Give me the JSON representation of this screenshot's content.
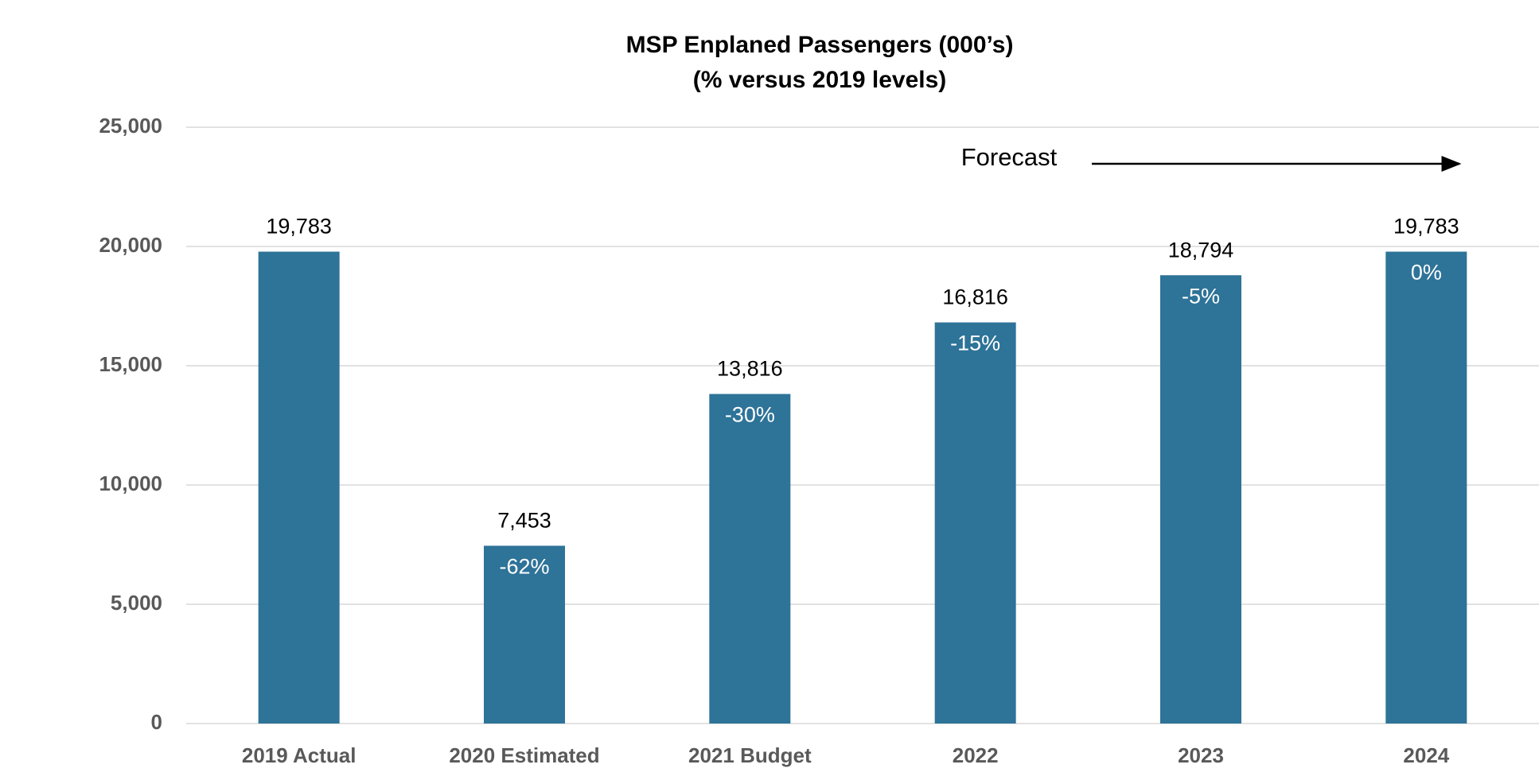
{
  "chart_data": {
    "type": "bar",
    "title": "MSP Enplaned Passengers (000’s)",
    "subtitle": "(% versus 2019 levels)",
    "categories": [
      "2019 Actual",
      "2020 Estimated",
      "2021 Budget",
      "2022",
      "2023",
      "2024"
    ],
    "values": [
      19783,
      7453,
      13816,
      16816,
      18794,
      19783
    ],
    "value_labels": [
      "19,783",
      "7,453",
      "13,816",
      "16,816",
      "18,794",
      "19,783"
    ],
    "percent_labels": [
      null,
      "-62%",
      "-30%",
      "-15%",
      "-5%",
      "0%"
    ],
    "color": "#2e7398",
    "ylim": [
      0,
      25000
    ],
    "yticks": [
      0,
      {
        "value": 5000,
        "label": "5,000"
      },
      {
        "value": 10000,
        "label": "10,000"
      },
      {
        "value": 15000,
        "label": "15,000"
      },
      {
        "value": 20000,
        "label": "20,000"
      },
      {
        "value": 25000,
        "label": "25,000"
      }
    ],
    "grid": true,
    "annotation": "Forecast"
  }
}
